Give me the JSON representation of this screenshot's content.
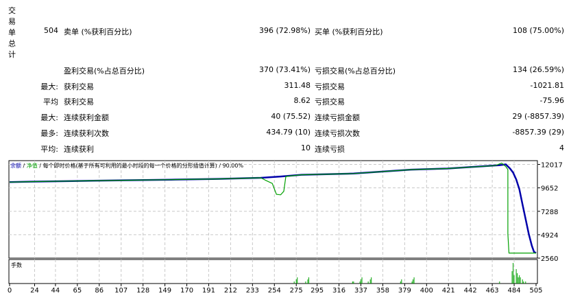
{
  "summary": {
    "vertical_label": "交易单总计",
    "total_trades": "504",
    "rows": [
      {
        "prefix": "",
        "left_label": "卖单 (%获利百分比)",
        "left_value": "396 (72.98%)",
        "right_label": "买单 (%获利百分比)",
        "right_value": "108 (75.00%)"
      },
      {
        "prefix": "",
        "left_label": "盈利交易(%占总百分比)",
        "left_value": "370 (73.41%)",
        "right_label": "亏损交易(%占总百分比)",
        "right_value": "134 (26.59%)"
      },
      {
        "prefix": "最大:",
        "left_label": "获利交易",
        "left_value": "311.48",
        "right_label": "亏损交易",
        "right_value": "-1021.81"
      },
      {
        "prefix": "平均",
        "left_label": "获利交易",
        "left_value": "8.62",
        "right_label": "亏损交易",
        "right_value": "-75.96"
      },
      {
        "prefix": "最大:",
        "left_label": "连续获利金额",
        "left_value": "40 (75.52)",
        "right_label": "连续亏损金额",
        "right_value": "29 (-8857.39)"
      },
      {
        "prefix": "最多:",
        "left_label": "连续获利次数",
        "left_value": "434.79 (10)",
        "right_label": "连续亏损次数",
        "right_value": "-8857.39 (29)"
      },
      {
        "prefix": "平均:",
        "left_label": "连续获利",
        "left_value": "10",
        "right_label": "连续亏损",
        "right_value": "4"
      }
    ]
  },
  "chart_data": {
    "type": "line",
    "legend": {
      "balance": "余额",
      "sep1": " / ",
      "equity": "净值",
      "rest": " / 每个即时价格(基于所有可利用的最小时段的每一个价格的分形插值计算) / 90.00%"
    },
    "colors": {
      "balance": "#0000aa",
      "equity": "#00a000",
      "volume": "#00a000",
      "grid": "#c8c8c8"
    },
    "ylim": [
      2560,
      12400
    ],
    "yticks": [
      12017,
      9652,
      7288,
      4924,
      2560
    ],
    "xlim": [
      0,
      505
    ],
    "xticks": [
      0,
      24,
      44,
      65,
      86,
      107,
      128,
      149,
      170,
      191,
      212,
      233,
      254,
      275,
      295,
      316,
      337,
      358,
      379,
      400,
      421,
      442,
      463,
      484,
      505
    ],
    "grid": true,
    "series": [
      {
        "key": "balance",
        "points": [
          [
            0,
            10230
          ],
          [
            20,
            10280
          ],
          [
            60,
            10340
          ],
          [
            110,
            10420
          ],
          [
            155,
            10480
          ],
          [
            200,
            10560
          ],
          [
            241,
            10670
          ],
          [
            260,
            10800
          ],
          [
            280,
            10970
          ],
          [
            330,
            11100
          ],
          [
            385,
            11490
          ],
          [
            420,
            11600
          ],
          [
            470,
            11940
          ],
          [
            476,
            12017
          ],
          [
            480,
            11600
          ],
          [
            483,
            11200
          ],
          [
            486,
            10500
          ],
          [
            489,
            9500
          ],
          [
            492,
            8000
          ],
          [
            495,
            6500
          ],
          [
            498,
            5000
          ],
          [
            501,
            3800
          ],
          [
            503,
            3200
          ],
          [
            505,
            3070
          ]
        ]
      },
      {
        "key": "equity",
        "points": [
          [
            0,
            10230
          ],
          [
            20,
            10280
          ],
          [
            60,
            10340
          ],
          [
            110,
            10420
          ],
          [
            155,
            10480
          ],
          [
            200,
            10560
          ],
          [
            241,
            10670
          ],
          [
            246,
            10400
          ],
          [
            252,
            10100
          ],
          [
            256,
            9000
          ],
          [
            260,
            8950
          ],
          [
            263,
            9300
          ],
          [
            265,
            10800
          ],
          [
            280,
            10970
          ],
          [
            330,
            11100
          ],
          [
            385,
            11490
          ],
          [
            420,
            11600
          ],
          [
            466,
            11900
          ],
          [
            472,
            12150
          ],
          [
            476,
            11800
          ],
          [
            478,
            11500
          ],
          [
            478,
            5000
          ],
          [
            479,
            3070
          ],
          [
            505,
            3070
          ]
        ]
      }
    ],
    "volume": {
      "label": "手数",
      "bars": [
        [
          273,
          1
        ],
        [
          275,
          2
        ],
        [
          276,
          3
        ],
        [
          284,
          1
        ],
        [
          286,
          2
        ],
        [
          287,
          3
        ],
        [
          329,
          1
        ],
        [
          330,
          1
        ],
        [
          336,
          1
        ],
        [
          337,
          2
        ],
        [
          338,
          3
        ],
        [
          344,
          1
        ],
        [
          346,
          2
        ],
        [
          347,
          3
        ],
        [
          375,
          1
        ],
        [
          376,
          2
        ],
        [
          386,
          1
        ],
        [
          387,
          2
        ],
        [
          388,
          3
        ],
        [
          470,
          1
        ],
        [
          482,
          6
        ],
        [
          483,
          10
        ],
        [
          484,
          4
        ],
        [
          486,
          7
        ],
        [
          487,
          5
        ],
        [
          488,
          3
        ],
        [
          489,
          4
        ],
        [
          490,
          3
        ],
        [
          492,
          2
        ],
        [
          493,
          1
        ],
        [
          495,
          1
        ]
      ]
    }
  }
}
